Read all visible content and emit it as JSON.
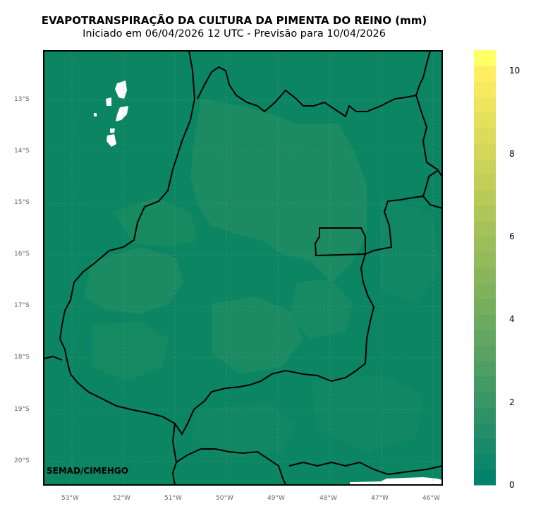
{
  "title": "EVAPOTRANSPIRAÇÃO DA CULTURA DA PIMENTA DO REINO (mm)",
  "subtitle": "Iniciado em 06/04/2026 12 UTC - Previsão para 10/04/2026",
  "credit": "SEMAD/CIMEHGO",
  "map": {
    "lat_ticks": [
      "13°S",
      "14°S",
      "15°S",
      "16°S",
      "17°S",
      "18°S",
      "19°S",
      "20°S"
    ],
    "lon_ticks": [
      "53°W",
      "52°W",
      "51°W",
      "50°W",
      "49°W",
      "48°W",
      "47°W",
      "46°W"
    ],
    "grid": true,
    "field_colors": {
      "base": "#0b8562",
      "light": "#1e8c64",
      "mid": "#168a64"
    }
  },
  "colorbar": {
    "min": 0,
    "max": 10.5,
    "labels": [
      "0",
      "2",
      "4",
      "6",
      "8",
      "10"
    ],
    "label_values": [
      0,
      2,
      4,
      6,
      8,
      10
    ],
    "colors": [
      "#00836a",
      "#0c876a",
      "#188a69",
      "#248e68",
      "#2f9267",
      "#3a9666",
      "#449a65",
      "#4f9e63",
      "#59a262",
      "#63a661",
      "#6caa60",
      "#76ae5e",
      "#80b25d",
      "#89b65c",
      "#93ba5b",
      "#9cbe5a",
      "#a5c259",
      "#afc658",
      "#b8ca58",
      "#c1ce58",
      "#cad258",
      "#d3d759",
      "#dcdb5a",
      "#e5e05b",
      "#eee45d",
      "#f7e960",
      "#ffee62",
      "#ffff66"
    ]
  }
}
